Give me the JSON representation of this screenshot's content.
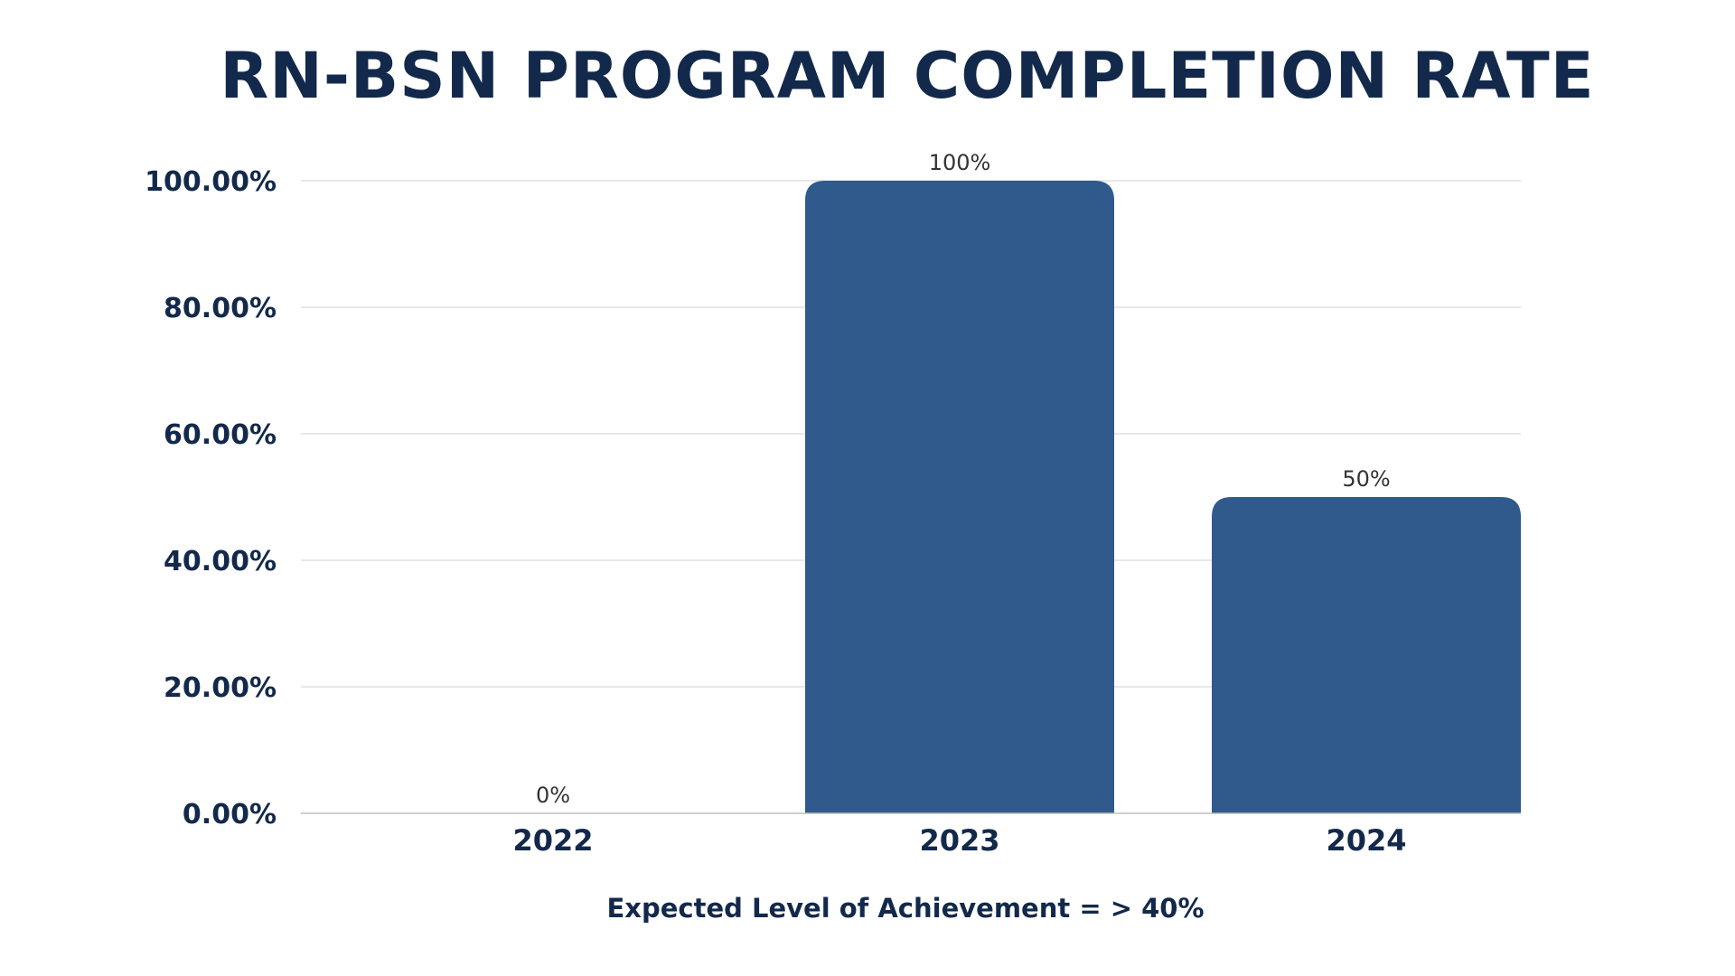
{
  "chart_data": {
    "type": "bar",
    "title": "RN-BSN PROGRAM COMPLETION RATE",
    "categories": [
      "2022",
      "2023",
      "2024"
    ],
    "values": [
      0,
      100,
      50
    ],
    "data_labels": [
      "0%",
      "100%",
      "50%"
    ],
    "xlabel": "",
    "ylabel": "",
    "ylim": [
      0,
      100
    ],
    "y_ticks": [
      0,
      20,
      40,
      60,
      80,
      100
    ],
    "y_tick_labels": [
      "0.00%",
      "20.00%",
      "40.00%",
      "60.00%",
      "80.00%",
      "100.00%"
    ],
    "grid": true,
    "legend": "none",
    "annotation": "Expected Level of Achievement = > 40%"
  },
  "colors": {
    "title": "#13294b",
    "text": "#13294b",
    "data_label": "#333333",
    "bar": "#2f5a8b",
    "grid": "#d9d9d9",
    "axis": "#bfbfbf"
  }
}
